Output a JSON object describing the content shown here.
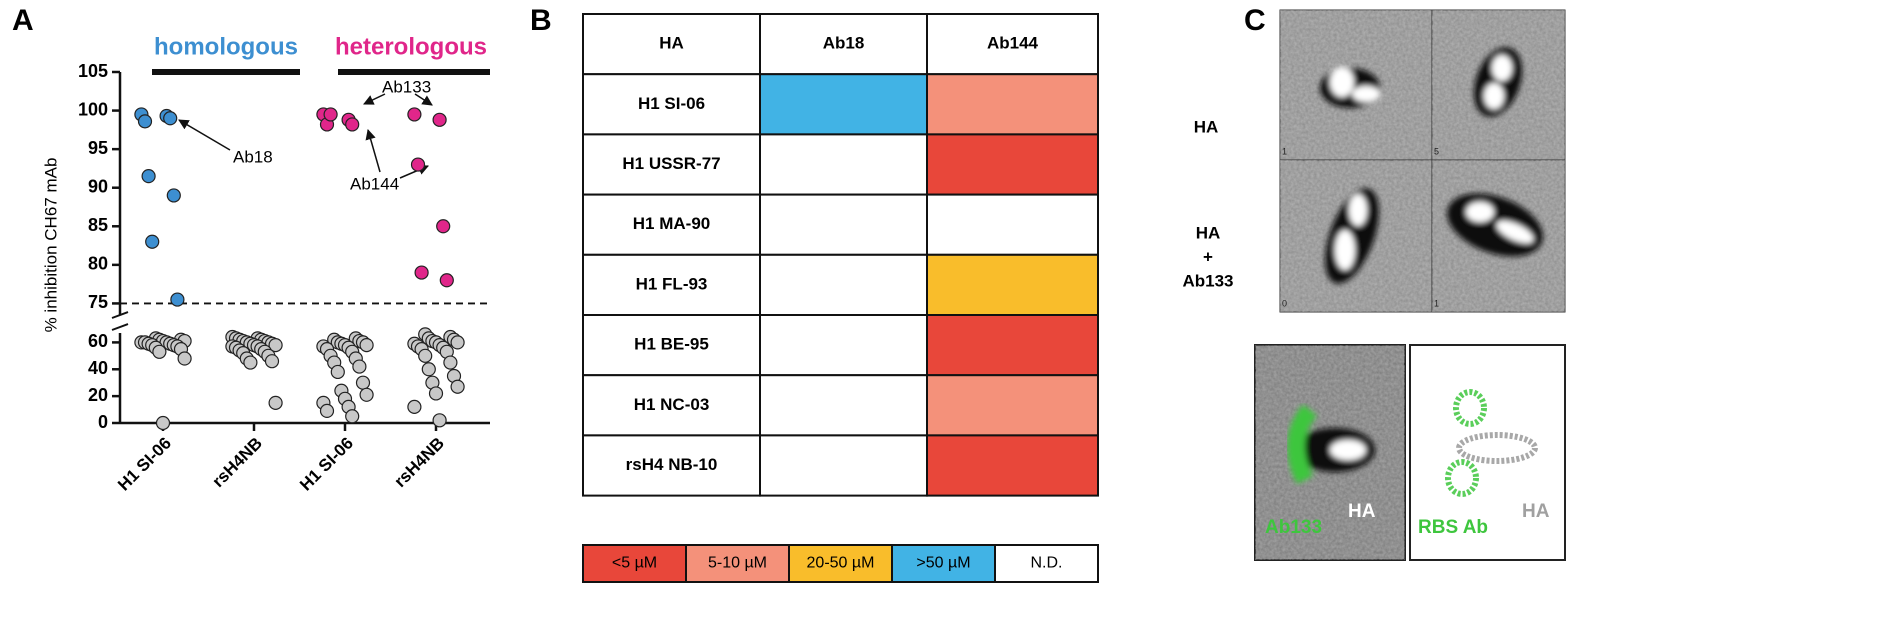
{
  "panel_labels": [
    "A",
    "B",
    "C"
  ],
  "chart_data": {
    "type": "scatter",
    "y_label": "% inhibition CH67 mAb",
    "series": [
      {
        "name": "homologous",
        "color": "#3d8fd1",
        "categories": [
          "H1 SI-06",
          "rsH4NB"
        ],
        "values": [
          [
            99.5,
            99.3,
            98.6,
            99.0,
            91.5,
            89,
            83,
            75.5,
            63,
            62,
            62,
            61,
            61,
            60,
            60,
            60,
            59,
            59,
            58,
            58,
            57,
            56,
            55,
            53,
            48,
            0
          ],
          [
            64,
            63,
            63,
            62,
            62,
            61,
            61,
            60,
            60,
            59,
            59,
            58,
            58,
            57,
            57,
            56,
            55,
            54,
            53,
            52,
            50,
            48,
            46,
            45,
            15
          ]
        ]
      },
      {
        "name": "heterologous",
        "color": "#e0268a",
        "categories": [
          "H1 SI-06",
          "rsH4NB"
        ],
        "values": [
          [
            99.5,
            98.8,
            98.2,
            98.2,
            99.5,
            63,
            62,
            61,
            60,
            60,
            59,
            58,
            58,
            57,
            56,
            55,
            53,
            50,
            48,
            45,
            42,
            38,
            30,
            24,
            21,
            18,
            15,
            12,
            9,
            5
          ],
          [
            99.5,
            98.8,
            93,
            85,
            79,
            78,
            66,
            64,
            63,
            62,
            61,
            60,
            60,
            59,
            58,
            57,
            56,
            55,
            53,
            50,
            45,
            40,
            35,
            30,
            27,
            22,
            12,
            2
          ]
        ]
      }
    ],
    "base_color": "#c8c8c8",
    "threshold": 75,
    "ylim_upper": [
      73.5,
      105
    ],
    "yticks_upper": [
      75,
      80,
      85,
      90,
      95,
      100,
      105
    ],
    "ylim_lower": [
      0,
      67
    ],
    "yticks_lower": [
      0,
      20,
      40,
      60
    ],
    "annotations": [
      "Ab18",
      "Ab133",
      "Ab144"
    ]
  },
  "table": {
    "columns": [
      "HA",
      "Ab18",
      "Ab144"
    ],
    "rows": [
      [
        "H1 SI-06",
        ">50 µM",
        "5-10 µM"
      ],
      [
        "H1 USSR-77",
        "N.D.",
        "<5 µM"
      ],
      [
        "H1 MA-90",
        "N.D.",
        "N.D."
      ],
      [
        "H1 FL-93",
        "N.D.",
        "20-50 µM"
      ],
      [
        "H1 BE-95",
        "N.D.",
        "<5 µM"
      ],
      [
        "H1 NC-03",
        "N.D.",
        "5-10 µM"
      ],
      [
        "rsH4 NB-10",
        "N.D.",
        "<5 µM"
      ]
    ],
    "legend": [
      {
        "label": "<5 µM",
        "color": "#e8473a"
      },
      {
        "label": "5-10 µM",
        "color": "#f4917a"
      },
      {
        "label": "20-50 µM",
        "color": "#f9bd2b"
      },
      {
        "label": ">50 µM",
        "color": "#41b3e5"
      },
      {
        "label": "N.D.",
        "color": "#ffffff"
      }
    ]
  },
  "panel_c": {
    "row_labels": [
      [
        "HA"
      ],
      [
        "HA",
        "+",
        "Ab133"
      ]
    ],
    "frame_numbers": [
      "1",
      "5",
      "0",
      "1"
    ],
    "overlay_labels": [
      [
        "Ab133",
        "HA"
      ],
      [
        "RBS Ab",
        "HA"
      ]
    ]
  }
}
